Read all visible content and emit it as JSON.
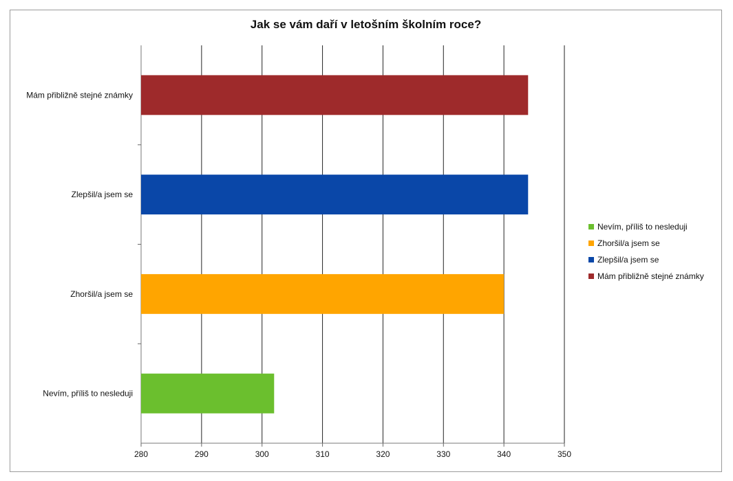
{
  "chart_data": {
    "type": "bar",
    "orientation": "horizontal",
    "title": "Jak se vám daří v letošním školním roce?",
    "xlabel": "",
    "ylabel": "",
    "xlim": [
      280,
      350
    ],
    "x_ticks": [
      280,
      290,
      300,
      310,
      320,
      330,
      340,
      350
    ],
    "grid": true,
    "legend_position": "right",
    "categories": [
      "Mám přibližně stejné známky",
      "Zlepšil/a jsem se",
      "Zhoršil/a jsem se",
      "Nevím, příliš to nesleduji"
    ],
    "values": [
      344,
      344,
      340,
      302
    ],
    "colors": [
      "#9e2a2b",
      "#0a47a8",
      "#ffa500",
      "#6bbf2e"
    ],
    "legend": [
      {
        "label": "Nevím, příliš to nesleduji",
        "color": "#6bbf2e"
      },
      {
        "label": "Zhoršil/a jsem se",
        "color": "#ffa500"
      },
      {
        "label": "Zlepšil/a jsem se",
        "color": "#0a47a8"
      },
      {
        "label": "Mám přibližně stejné známky",
        "color": "#9e2a2b"
      }
    ]
  }
}
